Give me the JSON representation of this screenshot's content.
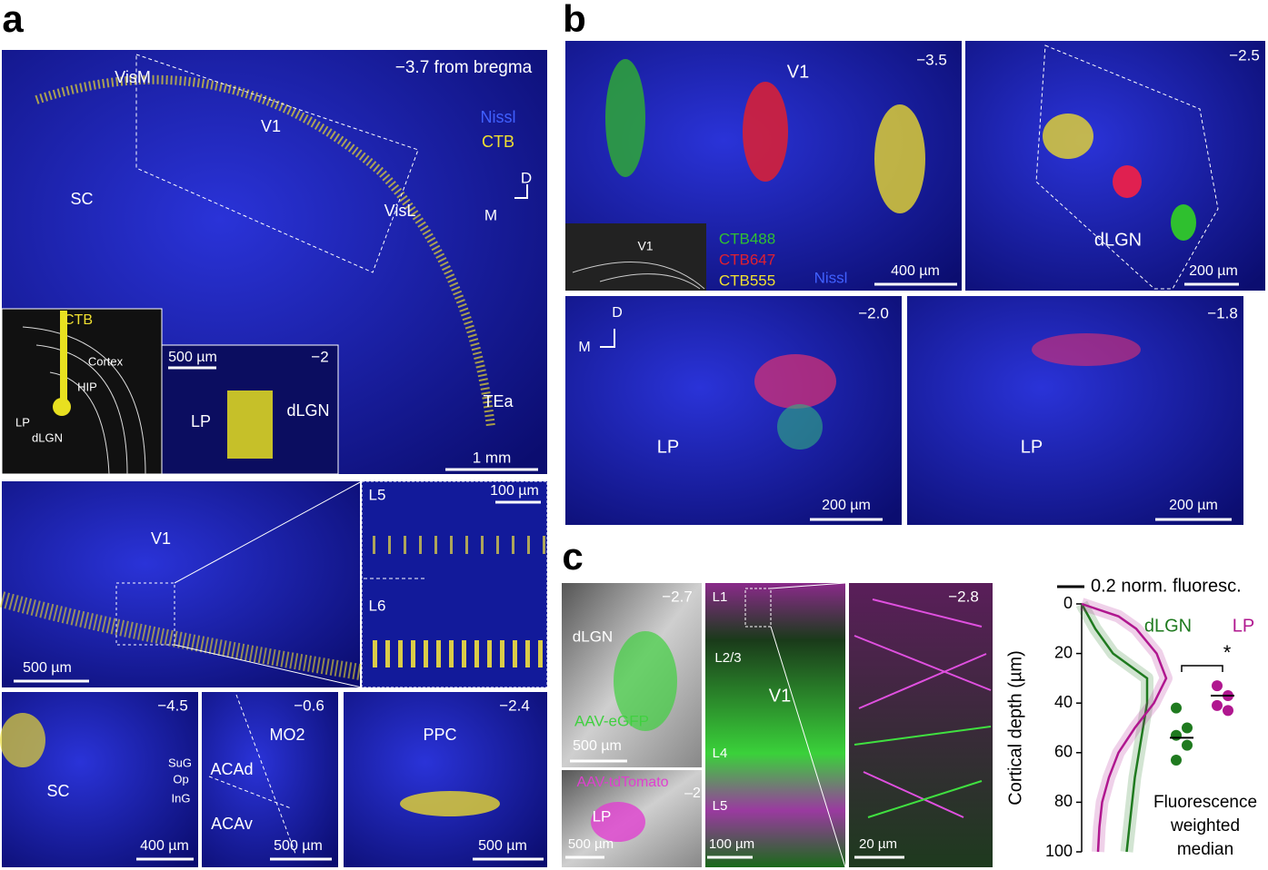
{
  "panel_a": {
    "letter": "a",
    "main": {
      "section": "−3.7 from bregma",
      "regions": [
        "VisM",
        "V1",
        "SC",
        "VisL",
        "TEa"
      ],
      "legend": [
        "Nissl",
        "CTB"
      ],
      "axes": [
        "D",
        "M"
      ],
      "scale": "1 mm"
    },
    "schematic": [
      "CTB",
      "Cortex",
      "HIP",
      "LP",
      "dLGN"
    ],
    "inset": {
      "scale": "500 µm",
      "section": "−2",
      "labels": [
        "LP",
        "dLGN"
      ]
    },
    "middle": {
      "label": "V1",
      "scale": "500 µm",
      "zoom": [
        "L5",
        "L6"
      ],
      "zoom_scale": "100 µm"
    },
    "bottom": [
      {
        "section": "−4.5",
        "labels": [
          "SC",
          "SuG",
          "Op",
          "InG"
        ],
        "scale": "400 µm"
      },
      {
        "section": "−0.6",
        "labels": [
          "MO2",
          "ACAd",
          "ACAv"
        ],
        "scale": "500 µm"
      },
      {
        "section": "−2.4",
        "labels": [
          "PPC"
        ],
        "scale": "500 µm"
      }
    ]
  },
  "panel_b": {
    "letter": "b",
    "top_left": {
      "section": "−3.5",
      "label": "V1",
      "tracers": [
        "CTB488",
        "CTB647",
        "CTB555"
      ],
      "nissl": "Nissl",
      "scale": "400 µm",
      "schematic": "V1"
    },
    "top_right": {
      "section": "−2.5",
      "label": "dLGN",
      "scale": "200 µm"
    },
    "bottom_left": {
      "section": "−2.0",
      "axes": [
        "D",
        "M"
      ],
      "label": "LP",
      "scale": "200 µm"
    },
    "bottom_right": {
      "section": "−1.8",
      "label": "LP",
      "scale": "200 µm"
    }
  },
  "panel_c": {
    "letter": "c",
    "image1": {
      "section": "−2.7",
      "label": "dLGN",
      "virus": "AAV-eGFP",
      "scale": "500 µm"
    },
    "image2": {
      "virus": "AAV-tdTomato",
      "section": "–2",
      "label": "LP",
      "scale": "500 µm"
    },
    "image3": {
      "layers": [
        "L1",
        "L2/3",
        "V1",
        "L4",
        "L5"
      ],
      "scale": "100 µm"
    },
    "image4": {
      "section": "−2.8",
      "scale": "20 µm"
    }
  },
  "chart_data": {
    "type": "line",
    "y_label": "Cortical depth (µm)",
    "x": [
      0,
      5,
      10,
      20,
      30,
      40,
      50,
      60,
      70,
      80,
      90,
      100
    ],
    "ylim": [
      0,
      100
    ],
    "yticks": [
      0,
      20,
      40,
      60,
      80,
      100
    ],
    "xlim": [
      0,
      1.3
    ],
    "scale_bar": {
      "value": 0.2,
      "label": "0.2 norm. fluoresc."
    },
    "series": [
      {
        "name": "dLGN",
        "color": "#1f7a1f",
        "values": [
          0,
          0.05,
          0.1,
          0.23,
          0.48,
          0.48,
          0.45,
          0.42,
          0.39,
          0.37,
          0.35,
          0.33
        ],
        "points": [
          42,
          50,
          53,
          57,
          63
        ],
        "median": 54
      },
      {
        "name": "LP",
        "color": "#b0178f",
        "values": [
          0,
          0.27,
          0.4,
          0.55,
          0.62,
          0.53,
          0.39,
          0.27,
          0.2,
          0.15,
          0.13,
          0.12
        ],
        "points": [
          33,
          37,
          41,
          43
        ],
        "median": 37
      }
    ],
    "significance": "*",
    "annotation": [
      "Fluorescence",
      "weighted",
      "median"
    ]
  }
}
